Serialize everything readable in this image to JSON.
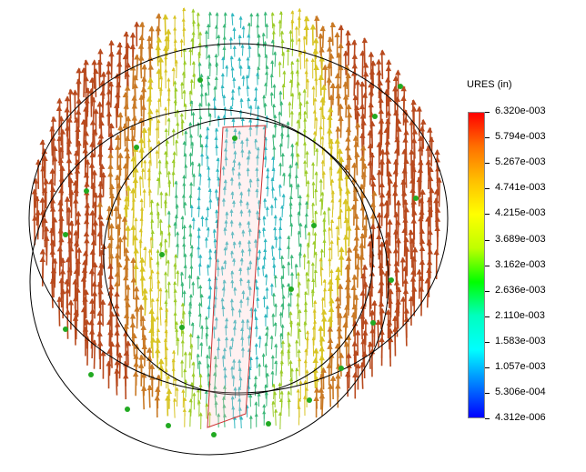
{
  "legend": {
    "title": "URES (in)",
    "ticks": [
      "6.320e-003",
      "5.794e-003",
      "5.267e-003",
      "4.741e-003",
      "4.215e-003",
      "3.689e-003",
      "3.162e-003",
      "2.636e-003",
      "2.110e-003",
      "1.583e-003",
      "1.057e-003",
      "5.306e-004",
      "4.312e-006"
    ],
    "gradient": [
      "#ff0000",
      "#ff7000",
      "#ffbf00",
      "#ffff00",
      "#bfff00",
      "#00ff00",
      "#00ffbf",
      "#00ffff",
      "#0080ff",
      "#0000ff"
    ]
  },
  "colors": {
    "outline": "#000000",
    "highlight": "#cc3333",
    "node_marker": "#22aa22",
    "arrow_high": "#b84a1e",
    "arrow_mid": "#d8d020",
    "arrow_low": "#30b8b8"
  }
}
